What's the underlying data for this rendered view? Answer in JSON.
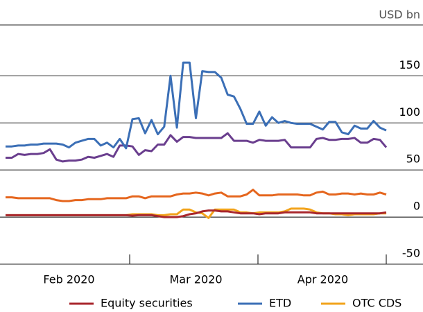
{
  "chart_data": {
    "type": "line",
    "unit_label": "USD bn",
    "categories": [
      null,
      null,
      null,
      null,
      null,
      null,
      null,
      null,
      null,
      null,
      "Feb 2020",
      null,
      null,
      null,
      null,
      null,
      null,
      null,
      null,
      null,
      null,
      null,
      null,
      null,
      null,
      null,
      null,
      null,
      null,
      null,
      "Mar 2020",
      null,
      null,
      null,
      null,
      null,
      null,
      null,
      null,
      null,
      null,
      null,
      null,
      null,
      null,
      null,
      null,
      null,
      null,
      null,
      "Apr 2020",
      null,
      null,
      null,
      null,
      null,
      null,
      null,
      null,
      null,
      null
    ],
    "series": [
      {
        "name": "Equity securities",
        "color": "#a8262c",
        "values": [
          2,
          2,
          2,
          2,
          2,
          2,
          2,
          2,
          2,
          2,
          2,
          2,
          2,
          2,
          2,
          2,
          2,
          2,
          2,
          2,
          1.5,
          2,
          2,
          2,
          1,
          0,
          0,
          0,
          1,
          3,
          4,
          6,
          7,
          7,
          6,
          6,
          5,
          4,
          4,
          4,
          3,
          4,
          4,
          4,
          5,
          5,
          5,
          5,
          5,
          4,
          4,
          4,
          4,
          4,
          4,
          4,
          4,
          4,
          4,
          4,
          5
        ]
      },
      {
        "name": "ETD",
        "color": "#3b6fb6",
        "values": [
          75,
          75,
          76,
          76,
          77,
          77,
          78,
          78,
          78,
          77,
          74,
          79,
          81,
          83,
          83,
          76,
          79,
          74,
          83,
          73,
          104,
          105,
          89,
          103,
          88,
          96,
          150,
          95,
          164,
          164,
          105,
          155,
          154,
          154,
          148,
          130,
          128,
          115,
          99,
          99,
          112,
          97,
          106,
          100,
          102,
          100,
          99,
          99,
          99,
          96,
          93,
          101,
          101,
          90,
          88,
          97,
          94,
          94,
          102,
          95,
          92
        ]
      },
      {
        "name": "OTC CDS",
        "color": "#f2a31b",
        "values": [
          2,
          2,
          2,
          2,
          2,
          2,
          2,
          2,
          2,
          2,
          2,
          2,
          2,
          2,
          2,
          2,
          2,
          2,
          2,
          2,
          3,
          3,
          3,
          3,
          2,
          2,
          3,
          3,
          8,
          8,
          5,
          4,
          -1,
          8,
          8,
          8,
          8,
          5,
          5,
          4,
          5,
          5,
          5,
          5,
          6,
          9,
          9,
          9,
          8,
          5,
          4,
          4,
          3,
          3,
          2,
          3,
          3,
          3,
          3,
          4,
          4
        ]
      },
      {
        "color": "#e5661e",
        "values": [
          21,
          21,
          20,
          20,
          20,
          20,
          20,
          20,
          18,
          17,
          17,
          18,
          18,
          19,
          19,
          19,
          20,
          20,
          20,
          20,
          22,
          22,
          20,
          22,
          22,
          22,
          22,
          24,
          25,
          25,
          26,
          25,
          23,
          25,
          26,
          22,
          22,
          22,
          24,
          29,
          23,
          23,
          23,
          24,
          24,
          24,
          24,
          23,
          23,
          26,
          27,
          24,
          24,
          25,
          25,
          24,
          25,
          24,
          24,
          26,
          24
        ]
      },
      {
        "color": "#6a3e8e",
        "values": [
          63,
          63,
          67,
          66,
          67,
          67,
          68,
          72,
          61,
          59,
          60,
          60,
          61,
          64,
          63,
          65,
          67,
          64,
          76,
          76,
          75,
          66,
          71,
          70,
          77,
          77,
          87,
          80,
          85,
          85,
          84,
          84,
          84,
          84,
          84,
          89,
          81,
          81,
          81,
          79,
          82,
          81,
          81,
          81,
          82,
          74,
          74,
          74,
          74,
          83,
          84,
          82,
          82,
          83,
          83,
          84,
          79,
          79,
          83,
          82,
          74
        ]
      }
    ],
    "ylim": [
      -50,
      204
    ],
    "yticks": [
      -50,
      0,
      50,
      100,
      150
    ],
    "grid": true
  }
}
